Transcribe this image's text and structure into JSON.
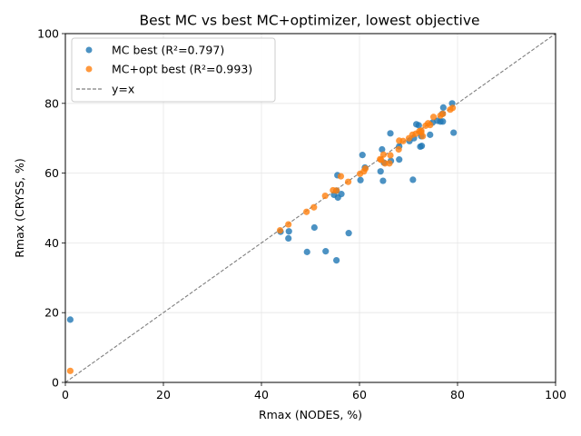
{
  "chart_data": {
    "type": "scatter",
    "title": "Best MC vs best MC+optimizer, lowest objective",
    "xlabel": "Rmax (NODES, %)",
    "ylabel": "Rmax (CRYSS, %)",
    "xlim": [
      0,
      100
    ],
    "ylim": [
      0,
      100
    ],
    "xticks": [
      "0",
      "20",
      "40",
      "60",
      "80",
      "100"
    ],
    "yticks": [
      "0",
      "20",
      "40",
      "60",
      "80",
      "100"
    ],
    "grid": true,
    "legend_position": "upper-left",
    "series": [
      {
        "name": "MC best (R²=0.797)",
        "color": "#1f77b4",
        "points": [
          [
            1.0,
            18.0
          ],
          [
            43.9,
            43.2
          ],
          [
            45.6,
            43.3
          ],
          [
            45.5,
            41.3
          ],
          [
            49.3,
            37.4
          ],
          [
            50.8,
            44.4
          ],
          [
            53.1,
            37.6
          ],
          [
            55.3,
            35.0
          ],
          [
            54.8,
            53.8
          ],
          [
            55.3,
            55.0
          ],
          [
            55.6,
            53.0
          ],
          [
            56.3,
            54.0
          ],
          [
            55.5,
            59.4
          ],
          [
            57.8,
            42.8
          ],
          [
            60.2,
            58.0
          ],
          [
            60.6,
            65.2
          ],
          [
            61.1,
            61.6
          ],
          [
            64.3,
            60.5
          ],
          [
            64.6,
            66.8
          ],
          [
            64.8,
            57.8
          ],
          [
            65.0,
            63.0
          ],
          [
            66.3,
            71.4
          ],
          [
            66.4,
            63.5
          ],
          [
            68.1,
            63.9
          ],
          [
            68.1,
            67.7
          ],
          [
            70.2,
            69.2
          ],
          [
            70.9,
            58.1
          ],
          [
            71.1,
            70.0
          ],
          [
            71.6,
            74.0
          ],
          [
            72.1,
            73.7
          ],
          [
            72.4,
            67.6
          ],
          [
            72.7,
            67.8
          ],
          [
            72.6,
            70.6
          ],
          [
            74.4,
            71.0
          ],
          [
            74.9,
            74.5
          ],
          [
            75.9,
            75.0
          ],
          [
            76.5,
            74.8
          ],
          [
            77.0,
            74.8
          ],
          [
            76.9,
            77.0
          ],
          [
            77.1,
            78.8
          ],
          [
            78.9,
            80.0
          ],
          [
            79.2,
            71.6
          ]
        ]
      },
      {
        "name": "MC+opt best (R²=0.993)",
        "color": "#ff7f0e",
        "points": [
          [
            1.0,
            3.3
          ],
          [
            43.8,
            43.6
          ],
          [
            45.5,
            45.3
          ],
          [
            49.2,
            48.9
          ],
          [
            50.7,
            50.2
          ],
          [
            53.0,
            53.5
          ],
          [
            54.6,
            55.1
          ],
          [
            55.3,
            55.0
          ],
          [
            56.2,
            59.1
          ],
          [
            57.7,
            57.5
          ],
          [
            60.1,
            59.8
          ],
          [
            60.9,
            60.5
          ],
          [
            61.2,
            61.3
          ],
          [
            64.2,
            64.0
          ],
          [
            64.4,
            63.8
          ],
          [
            64.9,
            65.3
          ],
          [
            65.2,
            62.8
          ],
          [
            66.1,
            62.8
          ],
          [
            66.3,
            65.1
          ],
          [
            68.0,
            66.8
          ],
          [
            68.1,
            69.3
          ],
          [
            68.9,
            69.2
          ],
          [
            70.1,
            70.0
          ],
          [
            70.8,
            71.0
          ],
          [
            71.5,
            71.3
          ],
          [
            72.2,
            72.0
          ],
          [
            72.6,
            72.2
          ],
          [
            72.6,
            71.7
          ],
          [
            72.9,
            70.6
          ],
          [
            73.5,
            73.6
          ],
          [
            74.0,
            74.3
          ],
          [
            74.4,
            73.8
          ],
          [
            75.1,
            76.1
          ],
          [
            76.5,
            76.5
          ],
          [
            77.0,
            77.0
          ],
          [
            78.5,
            78.2
          ],
          [
            79.0,
            78.7
          ]
        ]
      }
    ],
    "reference_line": {
      "name": "y=x",
      "color": "#7f7f7f",
      "from": [
        0,
        0
      ],
      "to": [
        100,
        100
      ]
    }
  }
}
